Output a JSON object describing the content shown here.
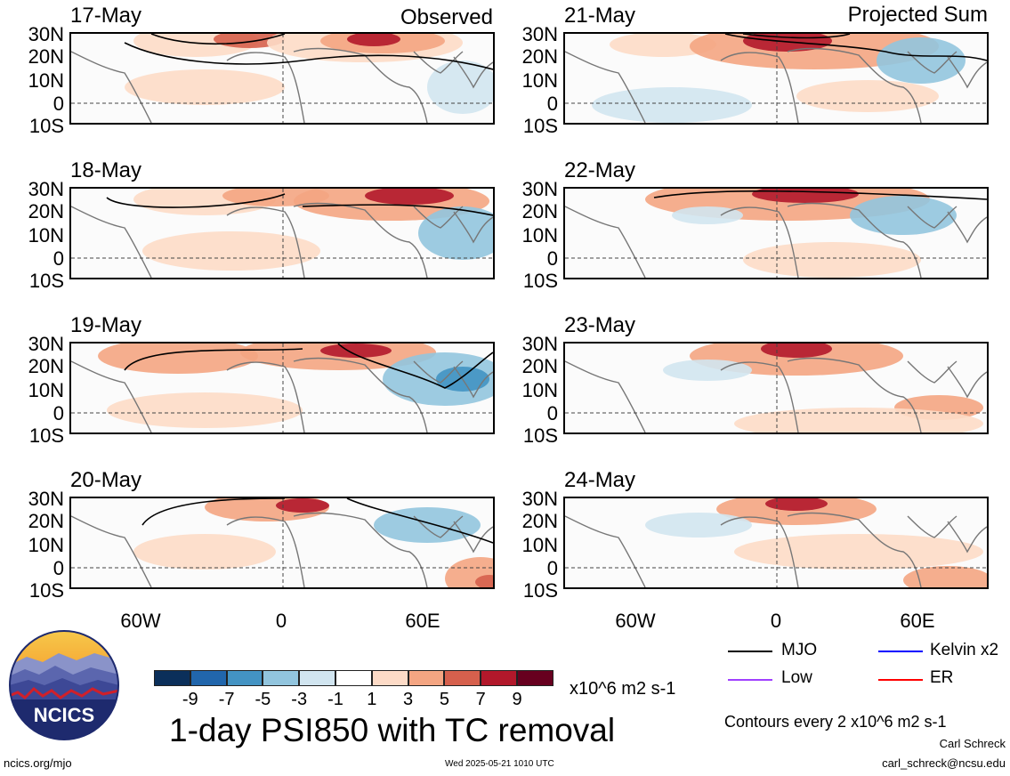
{
  "columns": {
    "left_tag": "Observed",
    "right_tag": "Projected Sum"
  },
  "panels": [
    {
      "date": "17-May"
    },
    {
      "date": "18-May"
    },
    {
      "date": "19-May"
    },
    {
      "date": "20-May"
    },
    {
      "date": "21-May"
    },
    {
      "date": "22-May"
    },
    {
      "date": "23-May"
    },
    {
      "date": "24-May"
    }
  ],
  "chart_data": {
    "type": "heatmap",
    "title": "1-day PSI850 with TC removal",
    "lat_labels": [
      "30N",
      "20N",
      "10N",
      "0",
      "10S"
    ],
    "lon_labels": [
      "60W",
      "0",
      "60E"
    ],
    "colorbar": {
      "unit": "x10^6 m2 s-1",
      "tick_labels": [
        "-9",
        "-7",
        "-5",
        "-3",
        "-1",
        "1",
        "3",
        "5",
        "7",
        "9"
      ],
      "colors": [
        "#0b2f5a",
        "#2166ac",
        "#4393c3",
        "#92c5de",
        "#d1e5f0",
        "#ffffff",
        "#fddbc7",
        "#f4a582",
        "#d6604d",
        "#b2182b",
        "#67001f"
      ]
    },
    "legend": {
      "entries": [
        {
          "name": "MJO",
          "color": "#000000"
        },
        {
          "name": "Kelvin x2",
          "color": "#0000ff"
        },
        {
          "name": "Low",
          "color": "#a040ff"
        },
        {
          "name": "ER",
          "color": "#ff0000"
        }
      ],
      "contour_note": "Contours every 2 x10^6 m2 s-1"
    }
  },
  "footer": {
    "logo_text": "NCICS",
    "website": "ncics.org/mjo",
    "timestamp": "Wed 2025-05-21 1010 UTC",
    "author": "Carl Schreck",
    "email": "carl_schreck@ncsu.edu"
  }
}
